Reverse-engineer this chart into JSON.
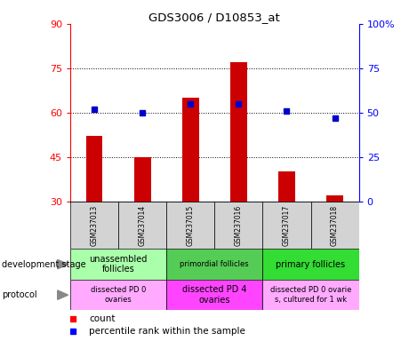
{
  "title": "GDS3006 / D10853_at",
  "samples": [
    "GSM237013",
    "GSM237014",
    "GSM237015",
    "GSM237016",
    "GSM237017",
    "GSM237018"
  ],
  "count_values": [
    52,
    45,
    65,
    77,
    40,
    32
  ],
  "percentile_values": [
    52,
    50,
    55,
    55,
    51,
    47
  ],
  "ylim_left": [
    30,
    90
  ],
  "ylim_right": [
    0,
    100
  ],
  "yticks_left": [
    30,
    45,
    60,
    75,
    90
  ],
  "yticks_right": [
    0,
    25,
    50,
    75,
    100
  ],
  "bar_color": "#cc0000",
  "dot_color": "#0000cc",
  "bar_width": 0.35,
  "development_stages": [
    {
      "label": "unassembled\nfollicles",
      "cols": [
        0,
        1
      ],
      "color": "#aaffaa",
      "fontsize": 7
    },
    {
      "label": "primordial follicles",
      "cols": [
        2,
        3
      ],
      "color": "#55cc55",
      "fontsize": 6
    },
    {
      "label": "primary follicles",
      "cols": [
        4,
        5
      ],
      "color": "#33dd33",
      "fontsize": 7
    }
  ],
  "protocols": [
    {
      "label": "dissected PD 0\novaries",
      "cols": [
        0,
        1
      ],
      "color": "#ffaaff",
      "fontsize": 6
    },
    {
      "label": "dissected PD 4\novaries",
      "cols": [
        2,
        3
      ],
      "color": "#ff44ff",
      "fontsize": 7
    },
    {
      "label": "dissected PD 0 ovarie\ns, cultured for 1 wk",
      "cols": [
        4,
        5
      ],
      "color": "#ffaaff",
      "fontsize": 6
    }
  ]
}
